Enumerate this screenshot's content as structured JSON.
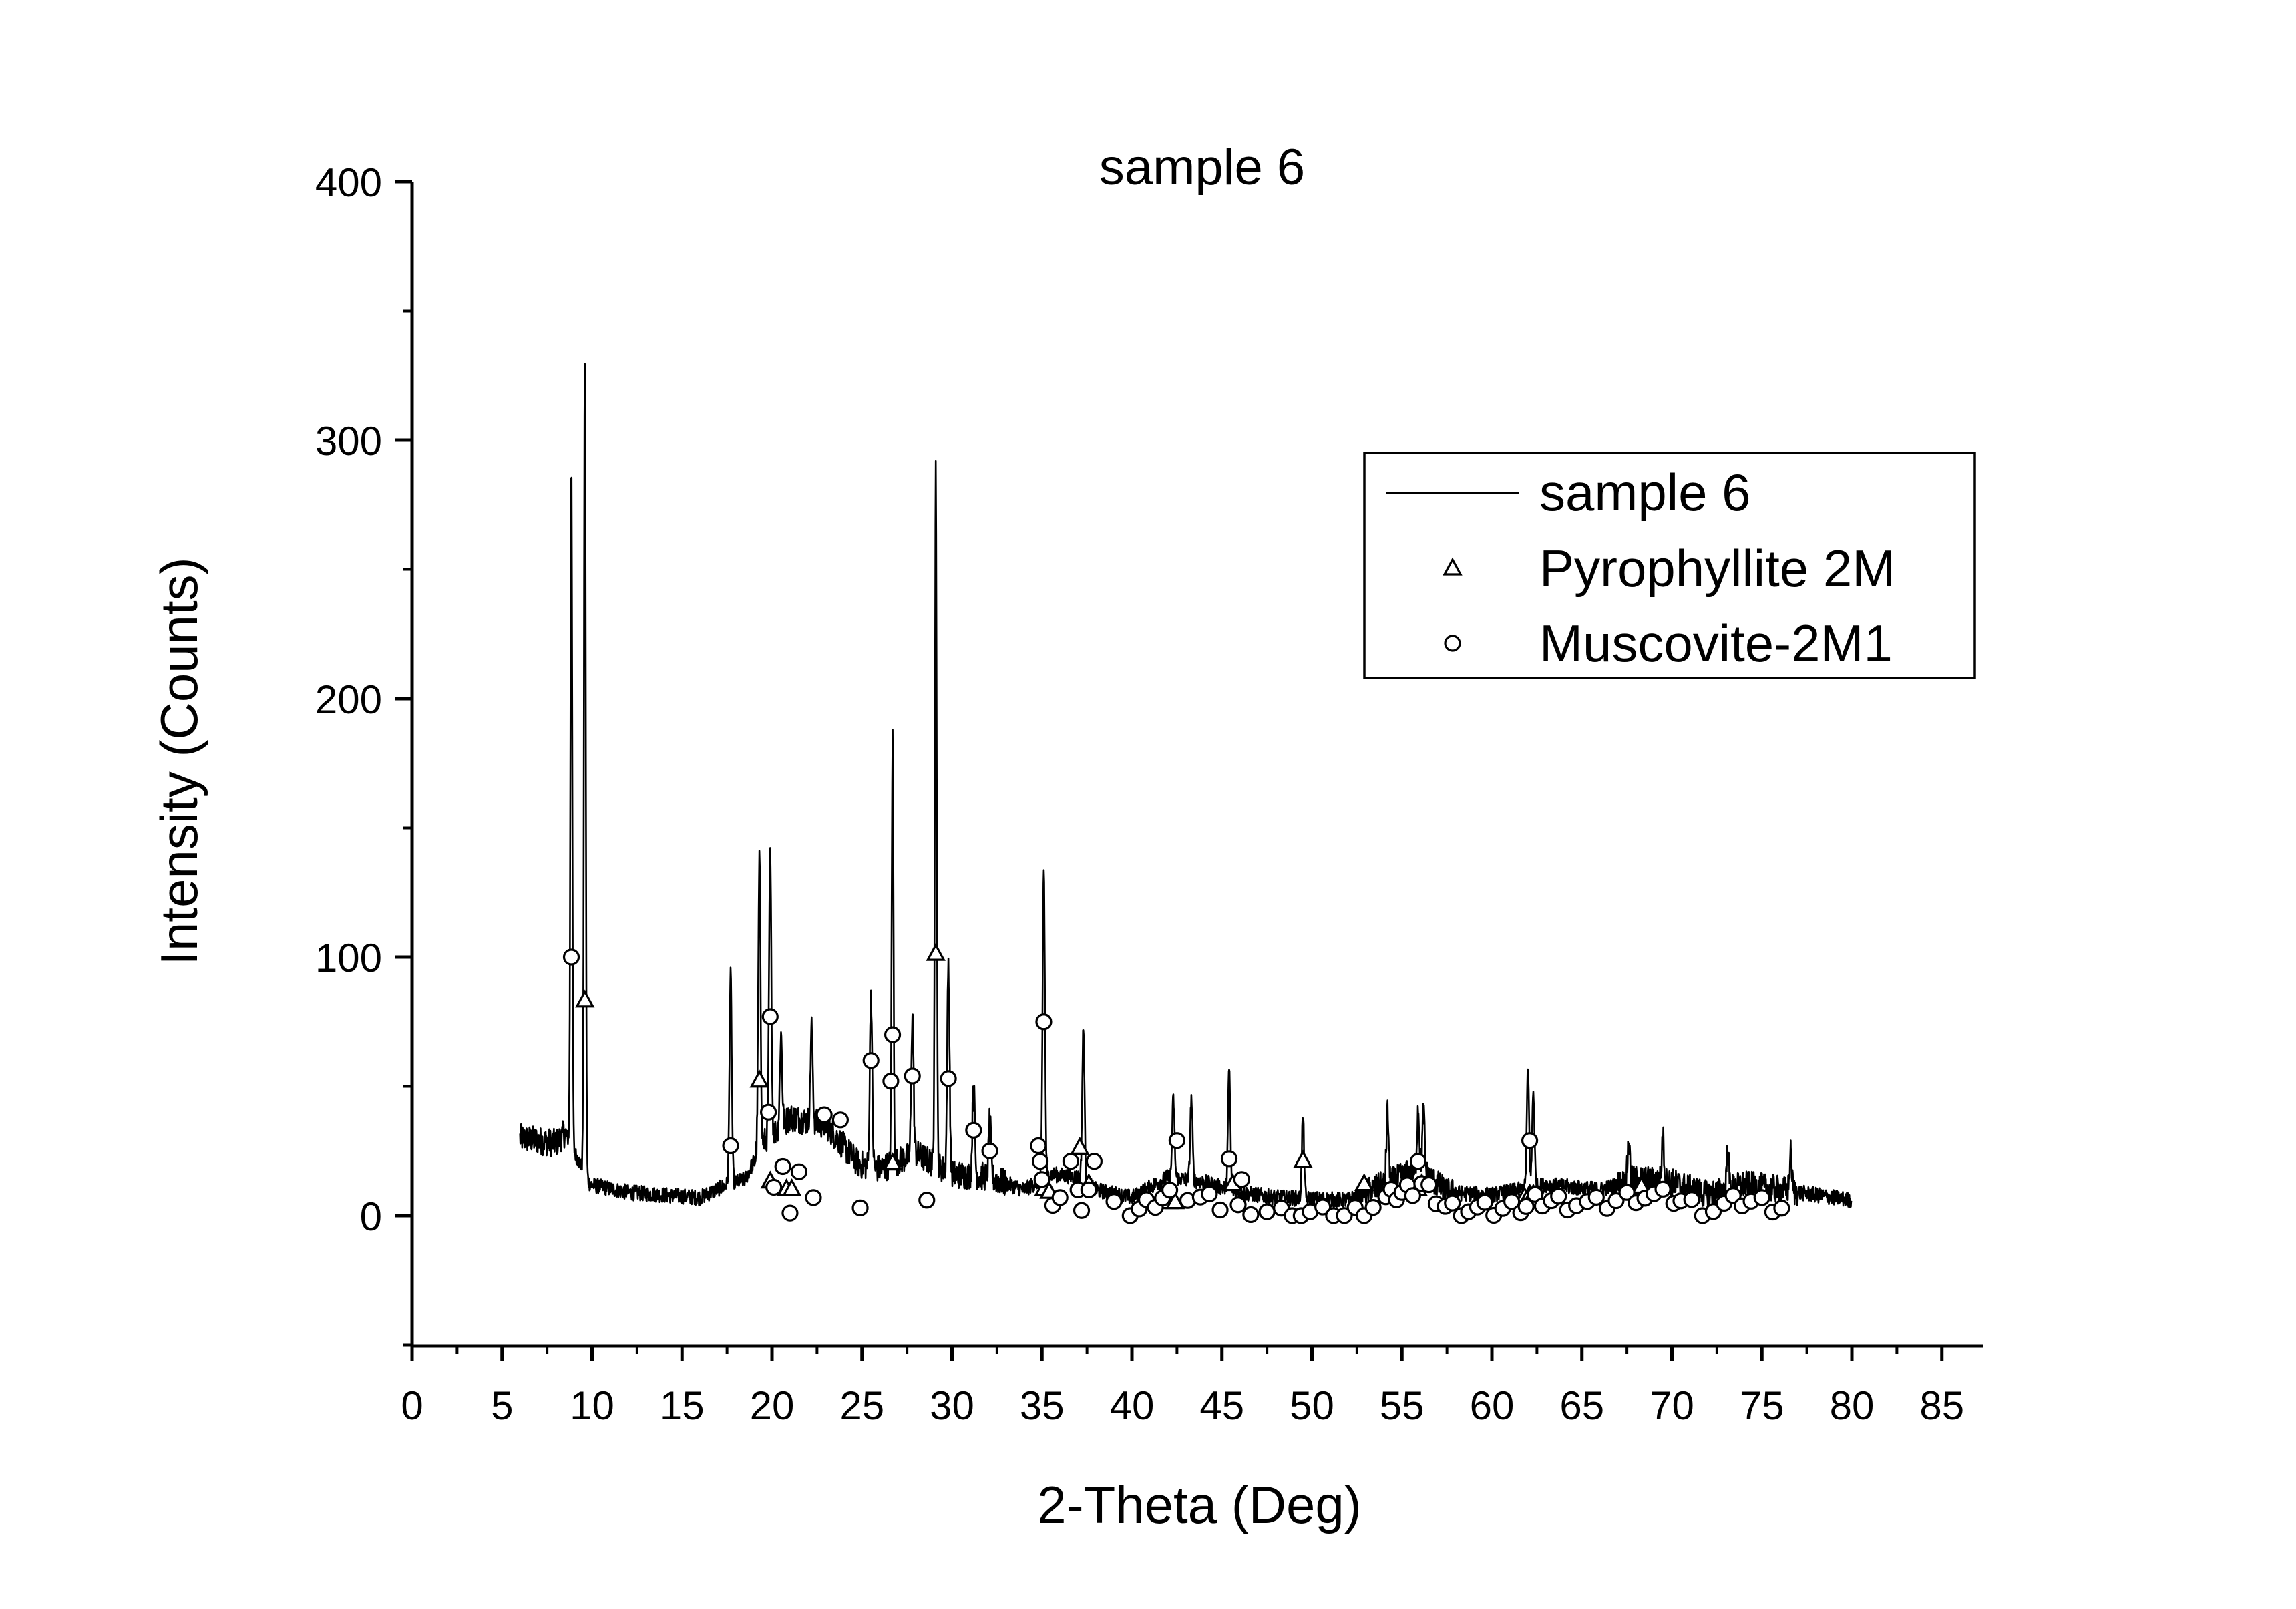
{
  "chart_data": {
    "type": "line",
    "title": "sample 6",
    "xlabel": "2-Theta (Deg)",
    "ylabel": "Intensity (Counts)",
    "xlim": [
      0,
      87
    ],
    "ylim": [
      -50,
      400
    ],
    "xticks": [
      "0",
      "5",
      "10",
      "15",
      "20",
      "25",
      "30",
      "35",
      "40",
      "45",
      "50",
      "55",
      "60",
      "65",
      "70",
      "75",
      "80",
      "85"
    ],
    "yticks": [
      "0",
      "100",
      "200",
      "300",
      "400"
    ],
    "legend": {
      "position": "top-right",
      "entries": [
        "sample 6",
        "Pyrophyllite 2M",
        "Muscovite-2M1"
      ]
    },
    "series": [
      {
        "name": "sample 6",
        "style": "line",
        "range": [
          6,
          80
        ],
        "baseline": [
          [
            6,
            30
          ],
          [
            8,
            28
          ],
          [
            8.5,
            32
          ],
          [
            9.9,
            12
          ],
          [
            12,
            9
          ],
          [
            16,
            7
          ],
          [
            17.5,
            12
          ],
          [
            18.5,
            14
          ],
          [
            19.5,
            28
          ],
          [
            21,
            38
          ],
          [
            23,
            35
          ],
          [
            24.8,
            20
          ],
          [
            26,
            18
          ],
          [
            28,
            24
          ],
          [
            30,
            16
          ],
          [
            32,
            15
          ],
          [
            34,
            10
          ],
          [
            35.5,
            16
          ],
          [
            37,
            15
          ],
          [
            38,
            10
          ],
          [
            40,
            7
          ],
          [
            42,
            15
          ],
          [
            44,
            13
          ],
          [
            46,
            9
          ],
          [
            48,
            7
          ],
          [
            52,
            6
          ],
          [
            54,
            12
          ],
          [
            56,
            18
          ],
          [
            57.5,
            9
          ],
          [
            60,
            8
          ],
          [
            63,
            12
          ],
          [
            66,
            10
          ],
          [
            68,
            14
          ],
          [
            70,
            13
          ],
          [
            72,
            8
          ],
          [
            74,
            12
          ],
          [
            76,
            10
          ],
          [
            80,
            6
          ]
        ],
        "peaks": [
          [
            8.85,
            292
          ],
          [
            9.6,
            331
          ],
          [
            17.7,
            93
          ],
          [
            19.3,
            136
          ],
          [
            19.9,
            138
          ],
          [
            20.5,
            70
          ],
          [
            22.2,
            73
          ],
          [
            25.5,
            86
          ],
          [
            26.7,
            184
          ],
          [
            27.8,
            78
          ],
          [
            29.1,
            289
          ],
          [
            29.8,
            98
          ],
          [
            31.2,
            52
          ],
          [
            32.1,
            37
          ],
          [
            35.1,
            134
          ],
          [
            37.3,
            72
          ],
          [
            42.3,
            45
          ],
          [
            43.3,
            45
          ],
          [
            45.4,
            57
          ],
          [
            49.5,
            38
          ],
          [
            54.2,
            40
          ],
          [
            55.9,
            42
          ],
          [
            56.2,
            40
          ],
          [
            62,
            56
          ],
          [
            62.3,
            48
          ],
          [
            67.6,
            29
          ],
          [
            69.5,
            30
          ],
          [
            73.1,
            25
          ],
          [
            76.6,
            24
          ]
        ]
      },
      {
        "name": "Pyrophyllite 2M",
        "style": "triangle-markers",
        "x": [
          9.6,
          19.3,
          19.9,
          20.8,
          21.1,
          26.7,
          29.1,
          35.1,
          35.4,
          37.1,
          37.6,
          42.1,
          42.4,
          45.6,
          49.5,
          52.9,
          55.9,
          56.1,
          61.8,
          62.1,
          62.3,
          68.1,
          68.3
        ],
        "y": [
          83,
          52,
          13,
          10,
          10,
          20,
          101,
          10,
          9,
          26,
          12,
          5,
          5,
          12,
          21,
          12,
          10,
          12,
          7,
          8,
          8,
          10,
          11
        ]
      },
      {
        "name": "Muscovite-2M1",
        "style": "circle-markers",
        "x": [
          8.85,
          17.7,
          19.8,
          19.9,
          20.1,
          20.6,
          21.0,
          21.5,
          22.3,
          22.9,
          23.8,
          24.9,
          25.5,
          26.6,
          26.7,
          27.8,
          28.6,
          29.8,
          31.2,
          32.1,
          34.8,
          34.9,
          35.0,
          35.1,
          35.6,
          36.0,
          36.6,
          37.0,
          37.2,
          37.6,
          37.9,
          39.0,
          39.9,
          40.4,
          40.8,
          41.3,
          41.7,
          42.1,
          42.5,
          43.1,
          43.8,
          44.3,
          44.9,
          45.4,
          45.9,
          46.1,
          46.6,
          47.5,
          48.3,
          48.9,
          49.4,
          49.9,
          50.6,
          51.2,
          51.8,
          52.4,
          52.9,
          53.4,
          54.1,
          54.4,
          54.7,
          55.0,
          55.3,
          55.6,
          55.9,
          56.1,
          56.5,
          56.9,
          57.4,
          57.8,
          58.3,
          58.7,
          59.2,
          59.6,
          60.1,
          60.6,
          61.1,
          61.6,
          61.9,
          62.1,
          62.4,
          62.8,
          63.3,
          63.7,
          64.2,
          64.7,
          65.3,
          65.8,
          66.4,
          66.9,
          67.5,
          68.0,
          68.5,
          69.0,
          69.5,
          70.1,
          70.5,
          71.1,
          71.7,
          72.3,
          72.9,
          73.4,
          73.9,
          74.4,
          75.0,
          75.6,
          76.1
        ]
      }
    ]
  }
}
